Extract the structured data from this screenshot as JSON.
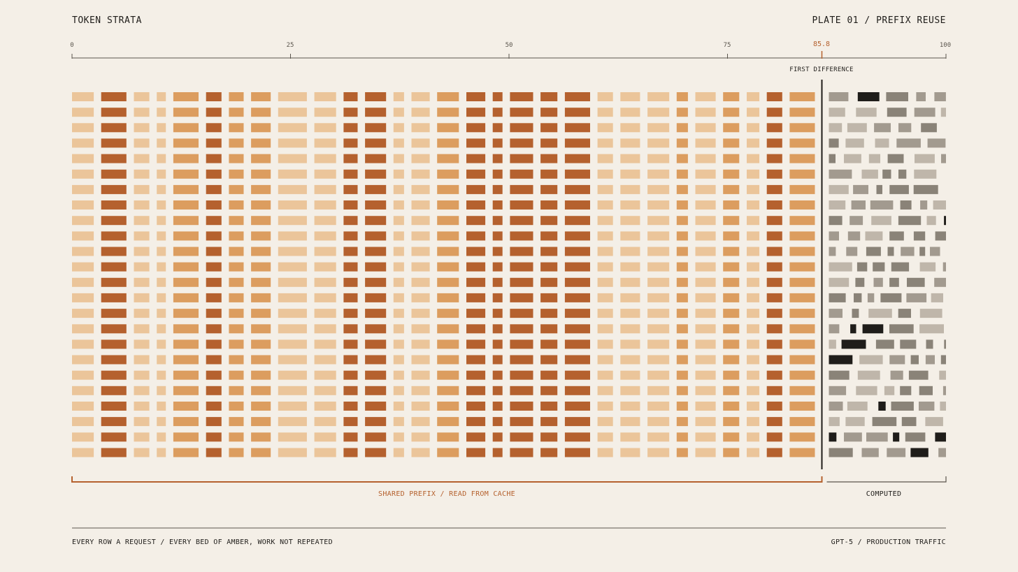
{
  "header": {
    "title": "TOKEN STRATA",
    "plate": "PLATE 01 / PREFIX REUSE"
  },
  "axis": {
    "ticks": [
      "0",
      "25",
      "50",
      "75",
      "100"
    ],
    "first_difference_value": "85.8",
    "first_difference_label": "FIRST DIFFERENCE"
  },
  "brackets": {
    "prefix_label": "SHARED PREFIX / READ FROM CACHE",
    "computed_label": "COMPUTED"
  },
  "footer": {
    "left": "EVERY ROW A REQUEST / EVERY BED OF AMBER, WORK NOT REPEATED",
    "right": "GPT-5 / PRODUCTION TRAFFIC"
  },
  "chart_data": {
    "type": "heatmap",
    "x_range": [
      0,
      100
    ],
    "first_difference": 85.8,
    "rows": 24,
    "prefix_token_shades": [
      0,
      2,
      0,
      0,
      1,
      2,
      1,
      1,
      0,
      0,
      2,
      2,
      0,
      0,
      1,
      2,
      2,
      2,
      2,
      2,
      0,
      0,
      0,
      1,
      0,
      1,
      0,
      2,
      1
    ],
    "colors": {
      "amber_light": "#ebc59a",
      "amber_mid": "#dc9d5f",
      "amber_dark": "#b5612e",
      "computed_light": "#bfb6aa",
      "computed_mid": "#a29a8f",
      "computed_dark": "#8a8378",
      "computed_black": "#1f1d1a",
      "rule": "#1f1d1a"
    }
  }
}
